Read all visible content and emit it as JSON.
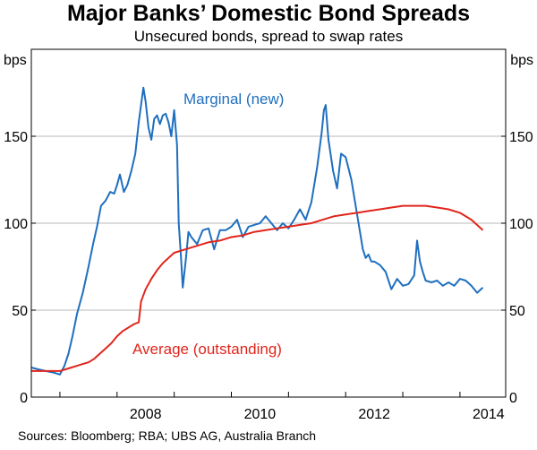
{
  "title": "Major Banks’ Domestic Bond Spreads",
  "subtitle": "Unsecured bonds, spread to swap rates",
  "source": "Sources:  Bloomberg; RBA; UBS AG, Australia Branch",
  "colors": {
    "marginal": "#1f6fbf",
    "average": "#e0261c",
    "grid": "#b8b8b8",
    "frame": "#000000"
  },
  "chart_data": {
    "type": "line",
    "xlabel": "",
    "ylabel_left": "bps",
    "ylabel_right": "bps",
    "ylim": [
      0,
      200
    ],
    "yticks": [
      0,
      50,
      100,
      150
    ],
    "xlim": [
      2006.5,
      2014.8
    ],
    "xticks": [
      2008,
      2010,
      2012,
      2014
    ],
    "grid": true,
    "series": [
      {
        "name": "Marginal (new)",
        "x": [
          2006.5,
          2006.62,
          2006.75,
          2006.9,
          2007.0,
          2007.08,
          2007.15,
          2007.22,
          2007.3,
          2007.4,
          2007.5,
          2007.58,
          2007.65,
          2007.72,
          2007.8,
          2007.88,
          2007.95,
          2008.0,
          2008.05,
          2008.12,
          2008.18,
          2008.25,
          2008.32,
          2008.38,
          2008.42,
          2008.46,
          2008.5,
          2008.55,
          2008.6,
          2008.65,
          2008.7,
          2008.75,
          2008.8,
          2008.85,
          2008.9,
          2008.95,
          2009.0,
          2009.05,
          2009.08,
          2009.12,
          2009.15,
          2009.2,
          2009.25,
          2009.3,
          2009.4,
          2009.5,
          2009.6,
          2009.7,
          2009.8,
          2009.9,
          2010.0,
          2010.1,
          2010.2,
          2010.3,
          2010.4,
          2010.5,
          2010.6,
          2010.7,
          2010.8,
          2010.9,
          2011.0,
          2011.1,
          2011.2,
          2011.3,
          2011.4,
          2011.5,
          2011.58,
          2011.62,
          2011.65,
          2011.7,
          2011.78,
          2011.85,
          2011.92,
          2012.0,
          2012.1,
          2012.2,
          2012.3,
          2012.35,
          2012.4,
          2012.45,
          2012.5,
          2012.6,
          2012.7,
          2012.8,
          2012.9,
          2013.0,
          2013.1,
          2013.2,
          2013.25,
          2013.3,
          2013.35,
          2013.4,
          2013.5,
          2013.6,
          2013.7,
          2013.8,
          2013.9,
          2014.0,
          2014.1,
          2014.2,
          2014.3,
          2014.4
        ],
        "values": [
          17,
          16,
          15,
          14,
          13,
          18,
          25,
          35,
          48,
          60,
          75,
          88,
          98,
          110,
          113,
          118,
          117,
          122,
          128,
          118,
          122,
          130,
          140,
          158,
          168,
          178,
          170,
          155,
          148,
          160,
          162,
          157,
          162,
          163,
          158,
          150,
          165,
          145,
          100,
          80,
          63,
          78,
          95,
          92,
          88,
          96,
          97,
          85,
          96,
          96,
          98,
          102,
          92,
          98,
          99,
          100,
          104,
          100,
          96,
          100,
          97,
          102,
          108,
          102,
          112,
          132,
          152,
          165,
          168,
          148,
          130,
          120,
          140,
          138,
          125,
          105,
          85,
          80,
          82,
          78,
          78,
          76,
          72,
          62,
          68,
          64,
          65,
          70,
          90,
          78,
          72,
          67,
          66,
          67,
          64,
          66,
          64,
          68,
          67,
          64,
          60,
          63
        ]
      },
      {
        "name": "Average (outstanding)",
        "x": [
          2006.5,
          2006.8,
          2007.0,
          2007.1,
          2007.2,
          2007.3,
          2007.4,
          2007.5,
          2007.6,
          2007.7,
          2007.8,
          2007.9,
          2008.0,
          2008.1,
          2008.2,
          2008.3,
          2008.38,
          2008.42,
          2008.5,
          2008.6,
          2008.7,
          2008.8,
          2008.9,
          2009.0,
          2009.2,
          2009.4,
          2009.6,
          2009.8,
          2010.0,
          2010.2,
          2010.4,
          2010.6,
          2010.8,
          2011.0,
          2011.2,
          2011.4,
          2011.6,
          2011.8,
          2012.0,
          2012.2,
          2012.4,
          2012.6,
          2012.8,
          2013.0,
          2013.2,
          2013.4,
          2013.6,
          2013.8,
          2014.0,
          2014.2,
          2014.4
        ],
        "values": [
          15,
          15,
          15,
          16,
          17,
          18,
          19,
          20,
          22,
          25,
          28,
          31,
          35,
          38,
          40,
          42,
          43,
          55,
          62,
          68,
          73,
          77,
          80,
          83,
          85,
          87,
          89,
          90,
          92,
          93,
          95,
          96,
          97,
          98,
          99,
          100,
          102,
          104,
          105,
          106,
          107,
          108,
          109,
          110,
          110,
          110,
          109,
          108,
          106,
          102,
          96
        ]
      }
    ]
  }
}
